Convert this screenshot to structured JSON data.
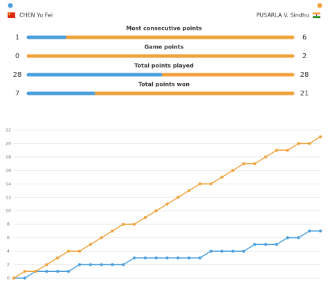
{
  "players": [
    {
      "name": "CHEN Yu Fei",
      "color": "#4a9ede"
    },
    {
      "name": "PUSARLA V. Sindhu",
      "color": "#f0a23a"
    }
  ],
  "stats": [
    {
      "label": "Most consecutive points",
      "left": 1,
      "right": 6
    },
    {
      "label": "Game points",
      "left": 0,
      "right": 2
    },
    {
      "label": "Total points played",
      "left": 28,
      "right": 28
    },
    {
      "label": "Total points won",
      "left": 7,
      "right": 21
    }
  ],
  "chart_data": {
    "type": "line",
    "series": [
      {
        "color": "#4a9ede",
        "values": [
          0,
          0,
          1,
          1,
          1,
          1,
          2,
          2,
          2,
          2,
          2,
          3,
          3,
          3,
          3,
          3,
          3,
          3,
          4,
          4,
          4,
          4,
          5,
          5,
          5,
          6,
          6,
          7,
          7
        ]
      },
      {
        "color": "#f0a23a",
        "values": [
          0,
          1,
          1,
          2,
          3,
          4,
          4,
          5,
          6,
          7,
          8,
          8,
          9,
          10,
          11,
          12,
          13,
          14,
          14,
          15,
          16,
          17,
          17,
          18,
          19,
          19,
          20,
          20,
          21
        ]
      }
    ],
    "ylim": [
      0,
      22
    ],
    "yticks": [
      0,
      2,
      4,
      6,
      8,
      10,
      12,
      14,
      16,
      18,
      20,
      22
    ],
    "grid": true
  }
}
